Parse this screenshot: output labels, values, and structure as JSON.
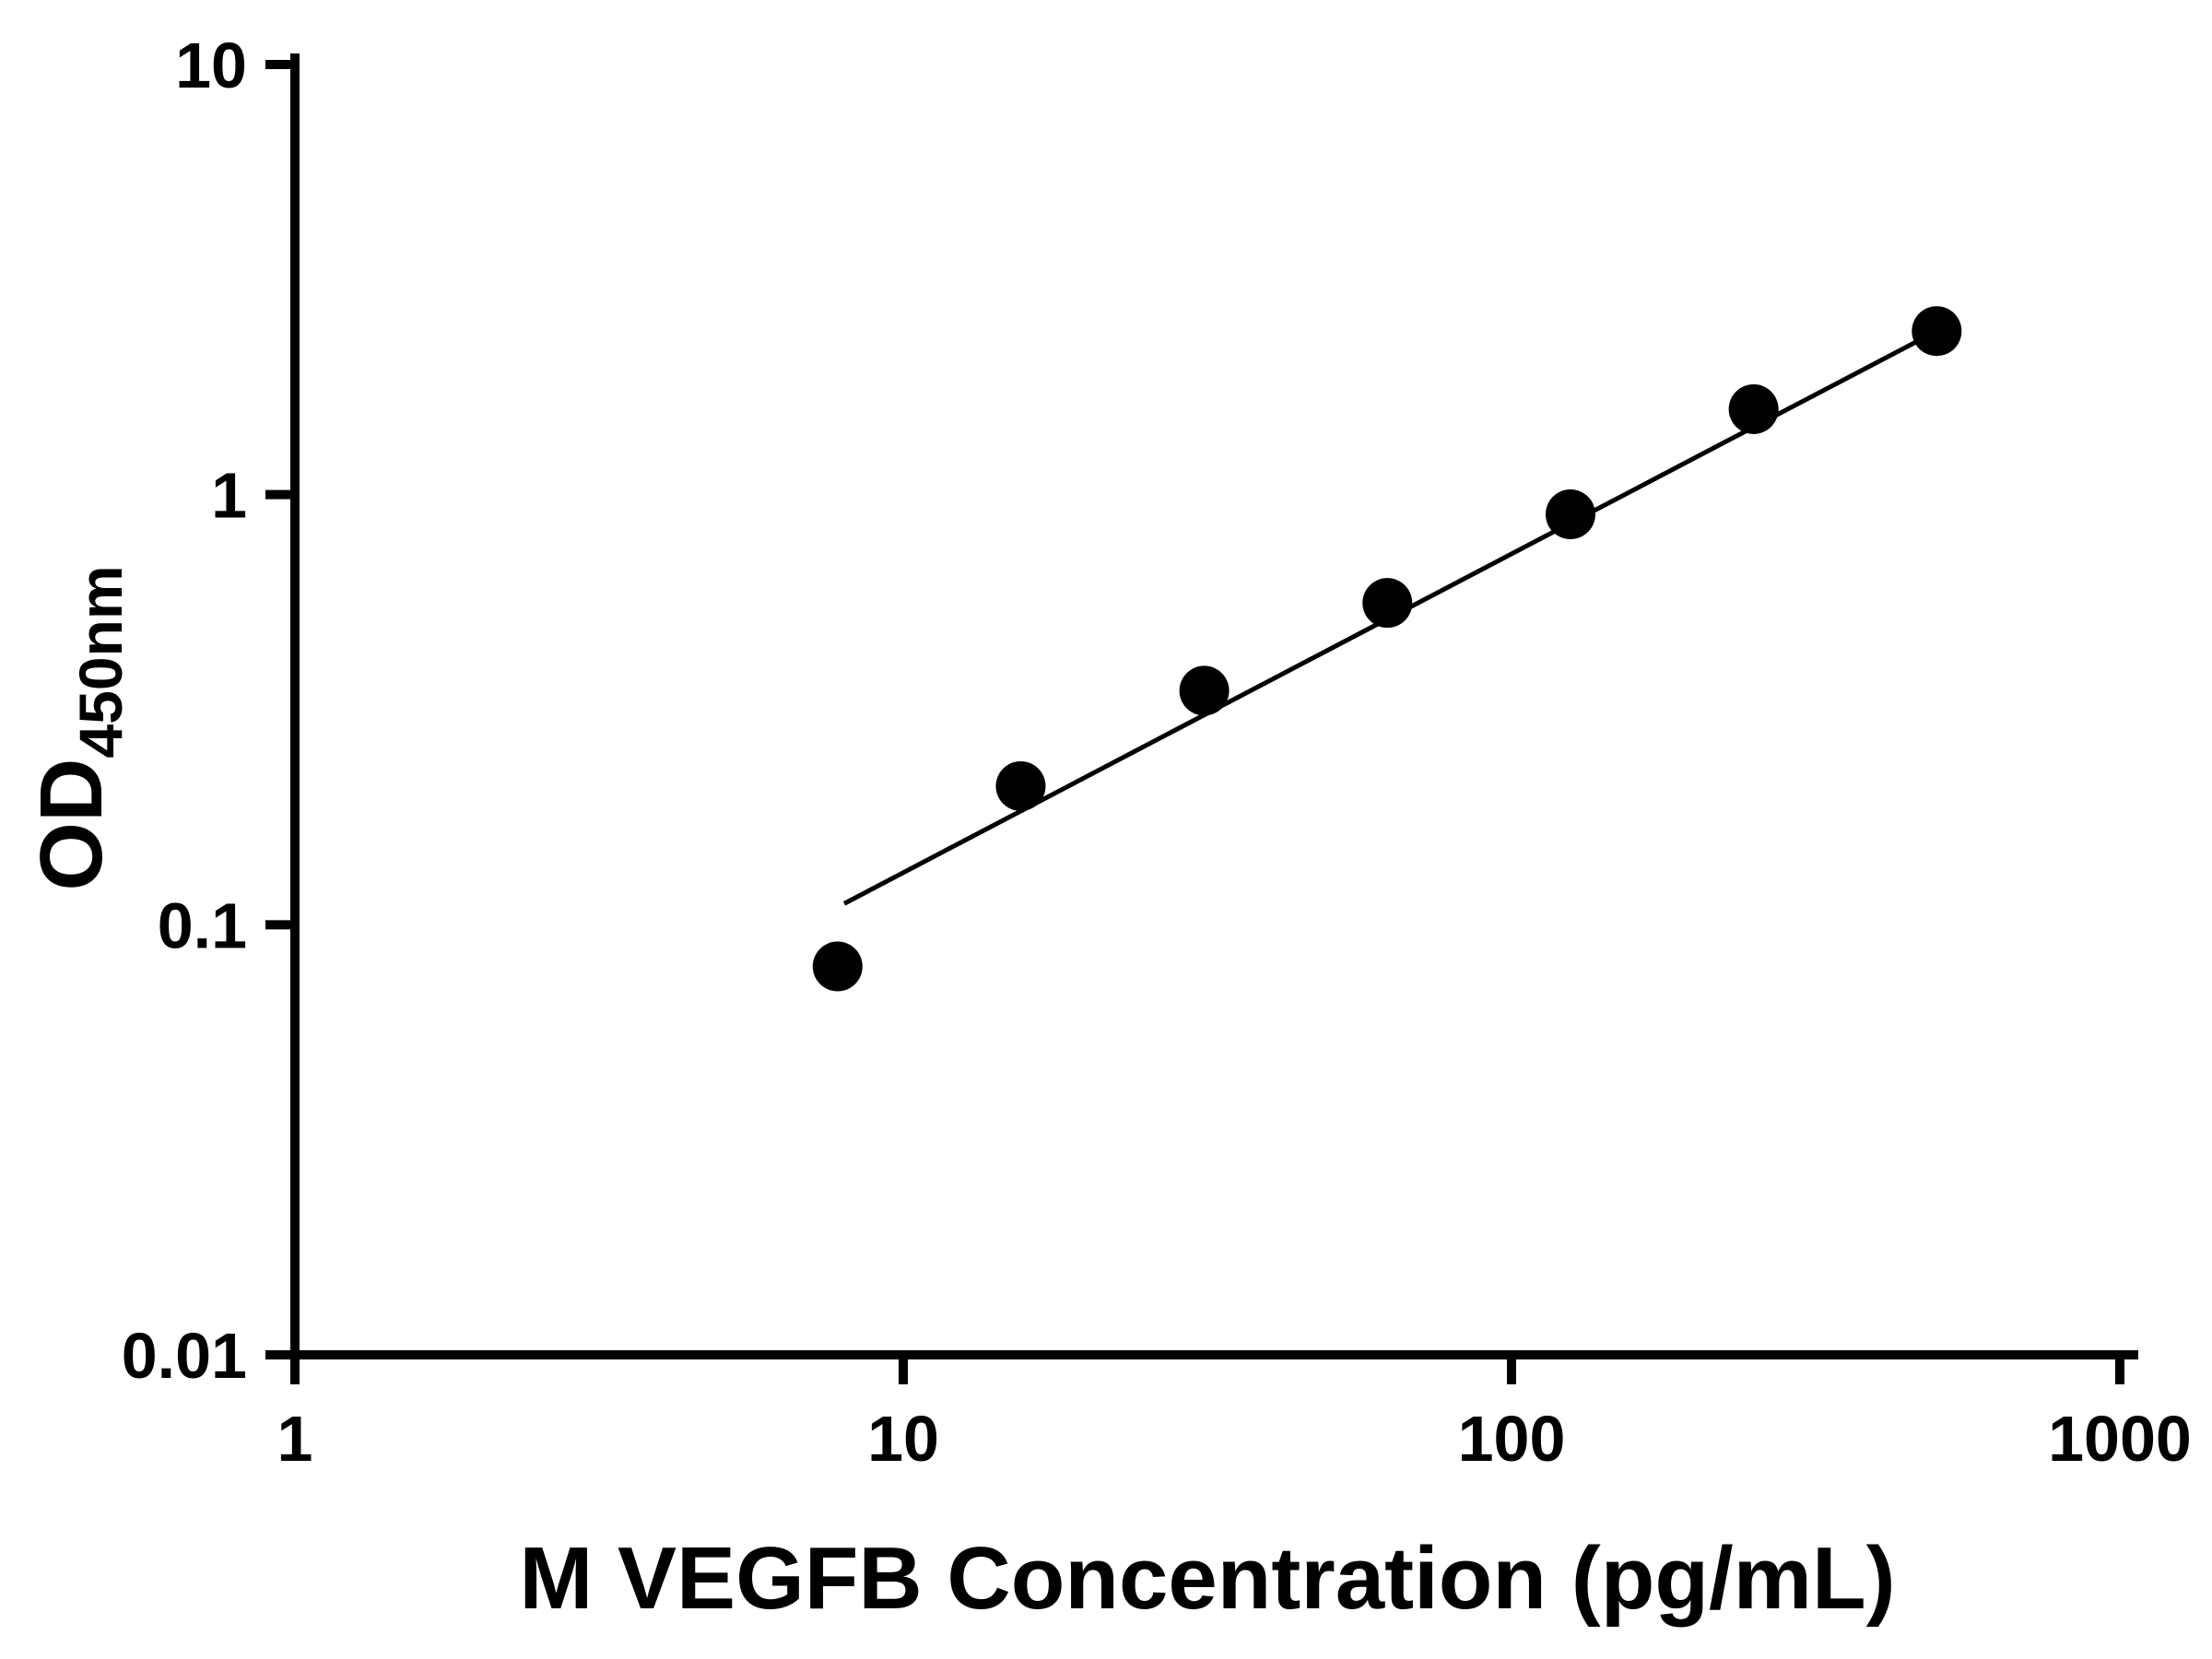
{
  "chart_data": {
    "type": "scatter",
    "title": "",
    "xlabel": "M VEGFB Concentration (pg/mL)",
    "ylabel_main": "OD",
    "ylabel_sub": "450nm",
    "x_scale": "log",
    "y_scale": "log",
    "xlim": [
      1,
      1000
    ],
    "ylim": [
      0.01,
      10
    ],
    "grid": "off",
    "legend": "none",
    "x_ticks": [
      1,
      10,
      100,
      1000
    ],
    "x_tick_labels": [
      "1",
      "10",
      "100",
      "1000"
    ],
    "y_ticks": [
      0.01,
      0.1,
      1,
      10
    ],
    "y_tick_labels": [
      "0.01",
      "0.1",
      "1",
      "10"
    ],
    "points": {
      "x": [
        7.8,
        15.6,
        31.25,
        62.5,
        125,
        250,
        500
      ],
      "y": [
        0.08,
        0.21,
        0.35,
        0.56,
        0.9,
        1.58,
        2.4
      ]
    },
    "trend_line": {
      "x_start": 8,
      "y_start": 0.112,
      "x_end": 500,
      "y_end": 2.4
    },
    "marker_color": "#000000",
    "line_color": "#000000",
    "axis_color": "#000000",
    "background": "#ffffff"
  }
}
